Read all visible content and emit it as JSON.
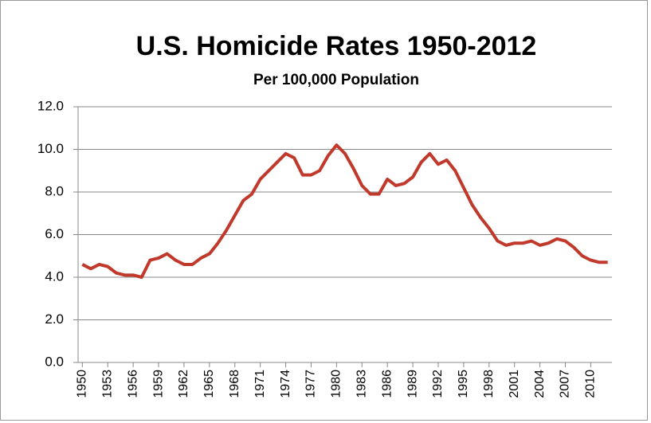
{
  "chart_data": {
    "type": "line",
    "title": "U.S. Homicide Rates 1950-2012",
    "subtitle": "Per 100,000 Population",
    "x": [
      1950,
      1951,
      1952,
      1953,
      1954,
      1955,
      1956,
      1957,
      1958,
      1959,
      1960,
      1961,
      1962,
      1963,
      1964,
      1965,
      1966,
      1967,
      1968,
      1969,
      1970,
      1971,
      1972,
      1973,
      1974,
      1975,
      1976,
      1977,
      1978,
      1979,
      1980,
      1981,
      1982,
      1983,
      1984,
      1985,
      1986,
      1987,
      1988,
      1989,
      1990,
      1991,
      1992,
      1993,
      1994,
      1995,
      1996,
      1997,
      1998,
      1999,
      2000,
      2001,
      2002,
      2003,
      2004,
      2005,
      2006,
      2007,
      2008,
      2009,
      2010,
      2011,
      2012
    ],
    "series": [
      {
        "color": "#c0392b",
        "values": [
          4.6,
          4.4,
          4.6,
          4.5,
          4.2,
          4.1,
          4.1,
          4.0,
          4.8,
          4.9,
          5.1,
          4.8,
          4.6,
          4.6,
          4.9,
          5.1,
          5.6,
          6.2,
          6.9,
          7.6,
          7.9,
          8.6,
          9.0,
          9.4,
          9.8,
          9.6,
          8.8,
          8.8,
          9.0,
          9.7,
          10.2,
          9.8,
          9.1,
          8.3,
          7.9,
          7.9,
          8.6,
          8.3,
          8.4,
          8.7,
          9.4,
          9.8,
          9.3,
          9.5,
          9.0,
          8.2,
          7.4,
          6.8,
          6.3,
          5.7,
          5.5,
          5.6,
          5.6,
          5.7,
          5.5,
          5.6,
          5.8,
          5.7,
          5.4,
          5.0,
          4.8,
          4.7,
          4.7
        ]
      }
    ],
    "xlim": [
      1949.5,
      2012.5
    ],
    "xticks": [
      1950,
      1953,
      1956,
      1959,
      1962,
      1965,
      1968,
      1971,
      1974,
      1977,
      1980,
      1983,
      1986,
      1989,
      1992,
      1995,
      1998,
      2001,
      2004,
      2007,
      2010
    ],
    "ylim": [
      0,
      12
    ],
    "yticks": [
      {
        "value": 0,
        "label": "0.0"
      },
      {
        "value": 2,
        "label": "2.0"
      },
      {
        "value": 4,
        "label": "4.0"
      },
      {
        "value": 6,
        "label": "6.0"
      },
      {
        "value": 8,
        "label": "8.0"
      },
      {
        "value": 10,
        "label": "10.0"
      },
      {
        "value": 12,
        "label": "12.0"
      }
    ],
    "grid": true
  }
}
